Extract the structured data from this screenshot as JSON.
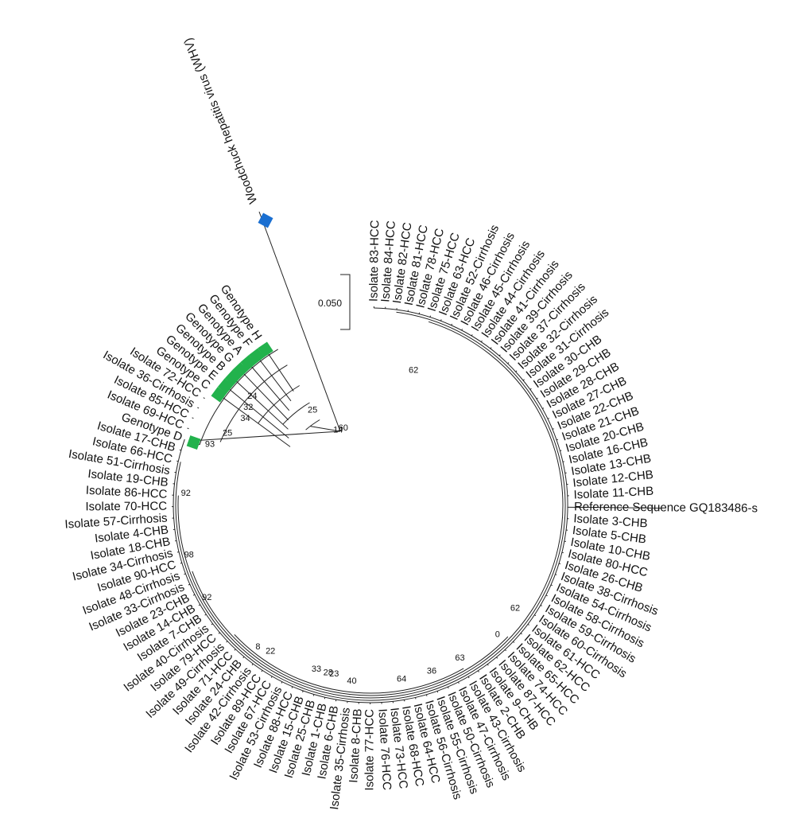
{
  "tree": {
    "outgroup": "Woodchuck hepatitis virus (WHV)",
    "scale_label": "0.050",
    "colors": {
      "outgroup_marker": "#1a6fd1",
      "genotype_marker": "#22b24c",
      "branch": "#222222"
    },
    "leaves": [
      "Isolate 83-HCC",
      "Isolate 84-HCC",
      "Isolate 82-HCC",
      "Isolate 81-HCC",
      "Isolate 78-HCC",
      "Isolate 75-HCC",
      "Isolate 63-HCC",
      "Isolate 52-Cirrhosis",
      "Isolate 46-Cirrhosis",
      "Isolate 45-Cirrhosis",
      "Isolate 44-Cirrhosis",
      "Isolate 41-Cirrhosis",
      "Isolate 39-Cirrhosis",
      "Isolate 37-Cirrhosis",
      "Isolate 32-Cirrhosis",
      "Isolate 31-Cirrhosis",
      "Isolate 30-CHB",
      "Isolate 29-CHB",
      "Isolate 28-CHB",
      "Isolate 27-CHB",
      "Isolate 22-CHB",
      "Isolate 21-CHB",
      "Isolate 20-CHB",
      "Isolate 16-CHB",
      "Isolate 13-CHB",
      "Isolate 12-CHB",
      "Isolate 11-CHB",
      "Reference Sequence GQ183486-s",
      "Isolate 3-CHB",
      "Isolate 5-CHB",
      "Isolate 10-CHB",
      "Isolate 80-HCC",
      "Isolate 26-CHB",
      "Isolate 38-Cirrhosis",
      "Isolate 54-Cirrhosis",
      "Isolate 58-Cirrhosis",
      "Isolate 59-Cirrhosis",
      "Isolate 60-Cirrhosis",
      "Isolate 61-HCC",
      "Isolate 62-HCC",
      "Isolate 65-HCC",
      "Isolate 74-HCC",
      "Isolate 87-HCC",
      "Isolate 9-CHB",
      "Isolate 2-CHB",
      "Isolate 43-Cirrhosis",
      "Isolate 47-Cirrhosis",
      "Isolate 50-Cirrhosis",
      "Isolate 55-Cirrhosis",
      "Isolate 56-Cirrhosis",
      "Isolate 64-HCC",
      "Isolate 68-HCC",
      "Isolate 73-HCC",
      "Isolate 76-HCC",
      "Isolate 77-HCC",
      "Isolate 8-CHB",
      "Isolate 35-Cirrhosis",
      "Isolate 6-CHB",
      "Isolate 1-CHB",
      "Isolate 25-CHB",
      "Isolate 15-CHB",
      "Isolate 88-HCC",
      "Isolate 53-Cirrhosis",
      "Isolate 67-HCC",
      "Isolate 89-HCC",
      "Isolate 42-Cirrhosis",
      "Isolate 24-CHB",
      "Isolate 71-HCC",
      "Isolate 49-Cirrhosis",
      "Isolate 79-HCC",
      "Isolate 40-Cirrhosis",
      "Isolate 7-CHB",
      "Isolate 14-CHB",
      "Isolate 23-CHB",
      "Isolate 33-Cirrhosis",
      "Isolate 48-Cirrhosis",
      "Isolate 90-HCC",
      "Isolate 34-Cirrhosis",
      "Isolate 18-CHB",
      "Isolate 4-CHB",
      "Isolate 57-Cirrhosis",
      "Isolate 70-HCC",
      "Isolate 86-HCC",
      "Isolate 19-CHB",
      "Isolate 51-Cirrhosis",
      "Isolate 66-HCC",
      "Isolate 17-CHB",
      "Genotype D",
      "Isolate 69-HCC",
      "Isolate 85-HCC",
      "Isolate 36-Cirrhosis",
      "Isolate 72-HCC",
      "Genotype C",
      "Genotype E",
      "Genotype B",
      "Genotype G",
      "Genotype A",
      "Genotype F",
      "Genotype H"
    ],
    "marked_genotypes": [
      "Genotype D",
      "Genotype C",
      "Genotype E",
      "Genotype B",
      "Genotype G",
      "Genotype A",
      "Genotype F",
      "Genotype H"
    ],
    "bootstrap_values": [
      "62",
      "60",
      "14",
      "25",
      "24",
      "32",
      "34",
      "25",
      "93",
      "63",
      "92",
      "98",
      "92",
      "8",
      "22",
      "33",
      "28",
      "23",
      "40",
      "64",
      "36",
      "0",
      "62"
    ]
  }
}
